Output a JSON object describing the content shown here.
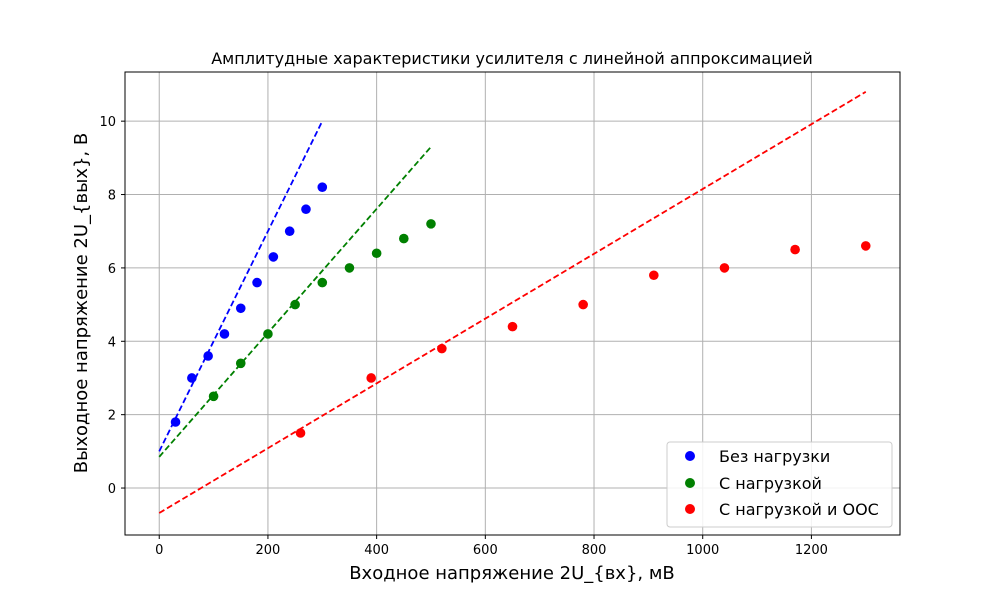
{
  "chart_data": {
    "type": "scatter",
    "title": "Амплитудные характеристики усилителя с линейной аппроксимацией",
    "xlabel": "Входное напряжение 2U_{вх}, мВ",
    "ylabel": "Выходное напряжение 2U_{вых}, В",
    "xlim": [
      -63,
      1363
    ],
    "ylim": [
      -1.28,
      11.34
    ],
    "xticks": [
      0,
      200,
      400,
      600,
      800,
      1000,
      1200
    ],
    "yticks": [
      0,
      2,
      4,
      6,
      8,
      10
    ],
    "grid": true,
    "legend_position": "bottom-right",
    "series": [
      {
        "name": "Без нагрузки",
        "color": "#0000ff",
        "points": [
          [
            30,
            1.8
          ],
          [
            60,
            3.0
          ],
          [
            90,
            3.6
          ],
          [
            120,
            4.2
          ],
          [
            150,
            4.9
          ],
          [
            180,
            5.6
          ],
          [
            210,
            6.3
          ],
          [
            240,
            7.0
          ],
          [
            270,
            7.6
          ],
          [
            300,
            8.2
          ]
        ],
        "fit": [
          [
            0,
            1.0
          ],
          [
            300,
            10.0
          ]
        ]
      },
      {
        "name": "С нагрузкой",
        "color": "#008000",
        "points": [
          [
            100,
            2.5
          ],
          [
            150,
            3.4
          ],
          [
            200,
            4.2
          ],
          [
            250,
            5.0
          ],
          [
            300,
            5.6
          ],
          [
            350,
            6.0
          ],
          [
            400,
            6.4
          ],
          [
            450,
            6.8
          ],
          [
            500,
            7.2
          ]
        ],
        "fit": [
          [
            0,
            0.85
          ],
          [
            500,
            9.3
          ]
        ]
      },
      {
        "name": "С нагрузкой и ООС",
        "color": "#ff0000",
        "points": [
          [
            260,
            1.5
          ],
          [
            390,
            3.0
          ],
          [
            520,
            3.8
          ],
          [
            650,
            4.4
          ],
          [
            780,
            5.0
          ],
          [
            910,
            5.8
          ],
          [
            1040,
            6.0
          ],
          [
            1170,
            6.5
          ],
          [
            1300,
            6.6
          ]
        ],
        "fit": [
          [
            0,
            -0.68
          ],
          [
            1300,
            10.8
          ]
        ]
      }
    ]
  }
}
